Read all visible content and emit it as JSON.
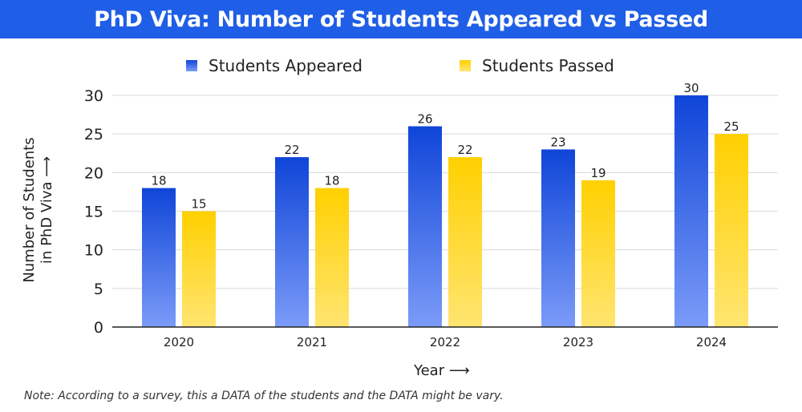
{
  "chart_data": {
    "type": "bar",
    "title": "PhD Viva: Number of Students Appeared vs Passed",
    "categories": [
      "2020",
      "2021",
      "2022",
      "2023",
      "2024"
    ],
    "series": [
      {
        "name": "Students Appeared",
        "values": [
          18,
          22,
          26,
          23,
          30
        ],
        "color_top": "#0f45d8",
        "color_bottom": "#7b9bf8"
      },
      {
        "name": "Students Passed",
        "values": [
          15,
          18,
          22,
          19,
          25
        ],
        "color_top": "#ffd000",
        "color_bottom": "#ffe571"
      }
    ],
    "data_labels": [
      [
        "18",
        "22",
        "26",
        "23",
        "30"
      ],
      [
        "15",
        "18",
        "22",
        "19",
        "25"
      ]
    ],
    "yticks": [
      "0",
      "5",
      "10",
      "15",
      "20",
      "25",
      "30"
    ],
    "ylim": [
      0,
      30
    ],
    "xlabel": "Year",
    "ylabel_lines": [
      "Number of Students",
      "in PhD Viva"
    ],
    "grid": true,
    "legend_position": "top"
  },
  "header": {
    "bg_color": "#1f5ee6"
  },
  "note": "Note: According to a survey, this a DATA of the students and the DATA might be vary."
}
